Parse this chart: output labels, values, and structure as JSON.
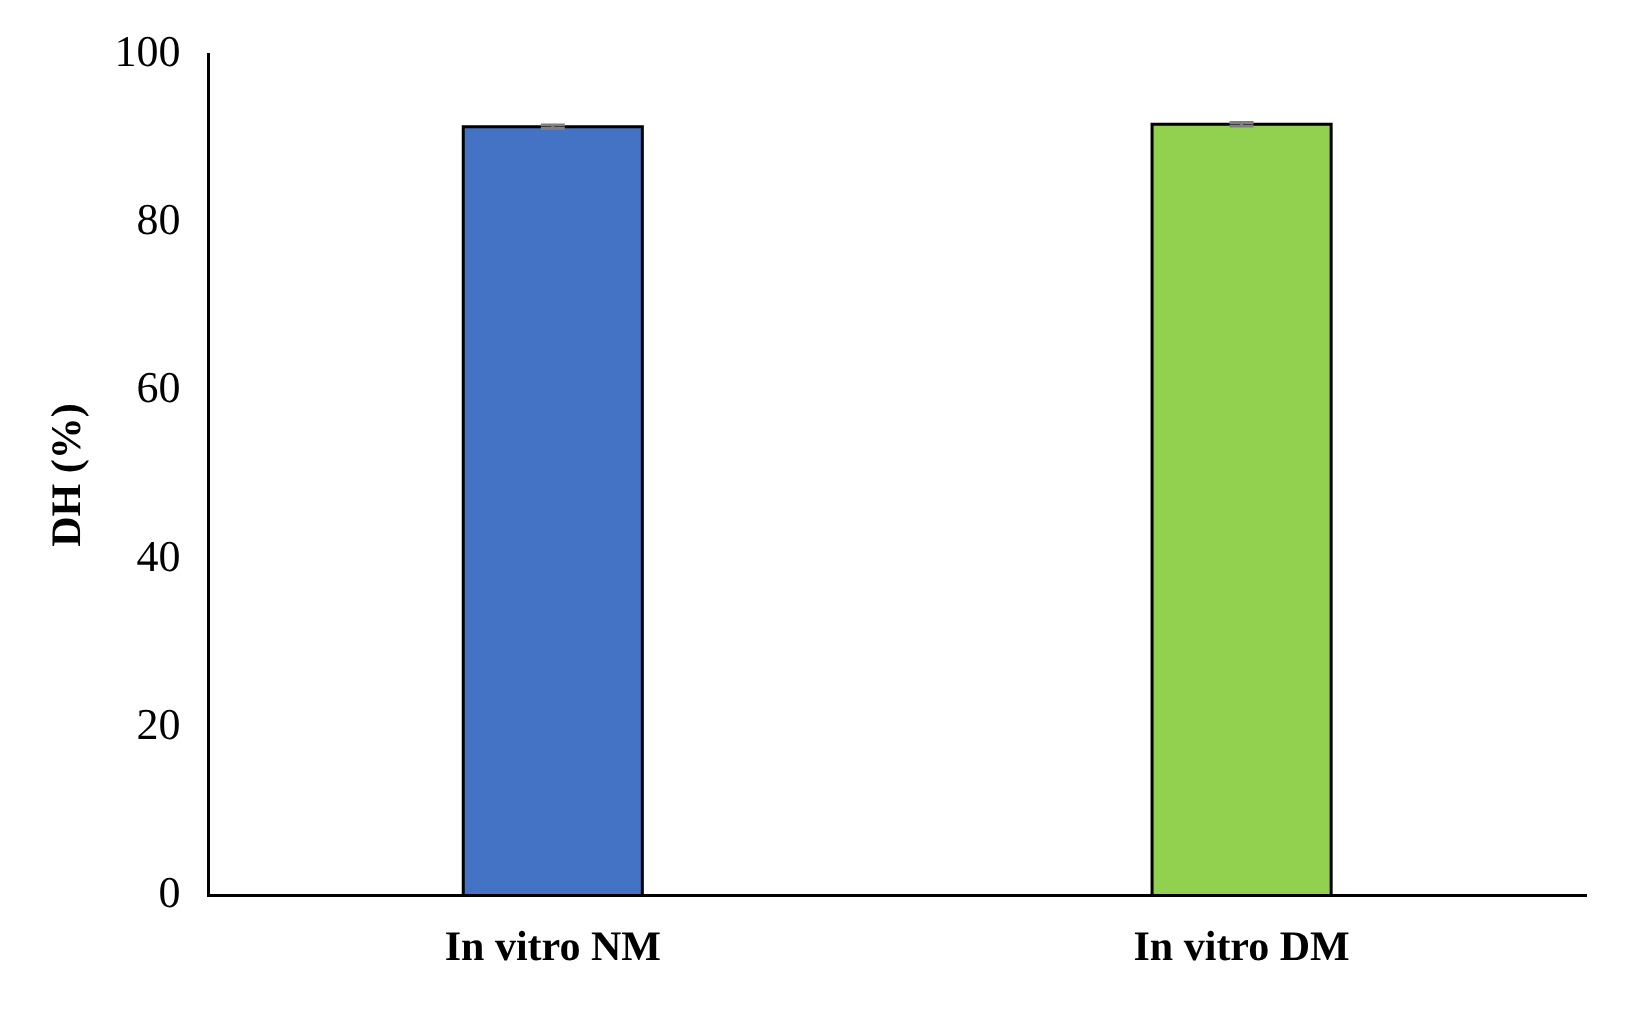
{
  "chart_data": {
    "type": "bar",
    "ylabel": "DH (%)",
    "categories": [
      "In vitro NM",
      "In vitro DM"
    ],
    "values": [
      91.4,
      91.7
    ],
    "colors": [
      "#4472c4",
      "#92d050"
    ],
    "errors": [
      0.2,
      0.2
    ],
    "ylim": [
      0,
      100
    ],
    "yticks": [
      0,
      20,
      40,
      60,
      80,
      100
    ],
    "grid": false,
    "legend": false
  }
}
